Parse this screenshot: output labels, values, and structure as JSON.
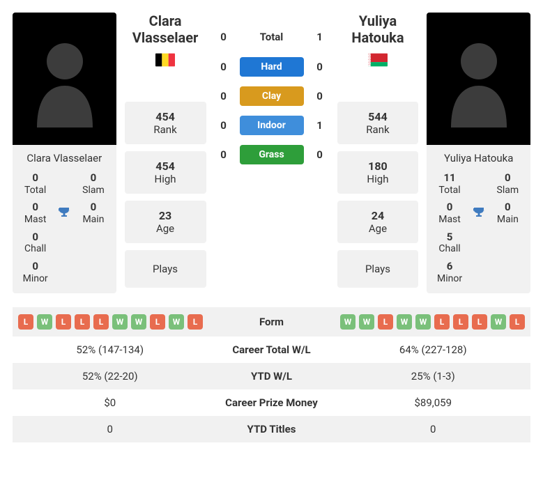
{
  "colors": {
    "chip_win": "#7ac07a",
    "chip_loss": "#e86c4f",
    "trophy": "#3f7bbf",
    "surface_hard": "#1f77d4",
    "surface_clay": "#d89a1e",
    "surface_indoor": "#3f8edb",
    "surface_grass": "#2e9e3a"
  },
  "player1": {
    "full_name": "Clara Vlasselaer",
    "first_name": "Clara",
    "last_name": "Vlasselaer",
    "flag_svg": "bel",
    "titles": {
      "total": "0",
      "slam": "0",
      "mast": "0",
      "main": "0",
      "chall": "0",
      "minor": "0"
    },
    "stats": {
      "rank": "454",
      "high": "454",
      "age": "23",
      "plays": ""
    }
  },
  "player2": {
    "full_name": "Yuliya Hatouka",
    "first_name": "Yuliya",
    "last_name": "Hatouka",
    "flag_svg": "blr",
    "titles": {
      "total": "11",
      "slam": "0",
      "mast": "0",
      "main": "0",
      "chall": "5",
      "minor": "6"
    },
    "stats": {
      "rank": "544",
      "high": "180",
      "age": "24",
      "plays": ""
    }
  },
  "labels": {
    "total": "Total",
    "slam": "Slam",
    "mast": "Mast",
    "main": "Main",
    "chall": "Chall",
    "minor": "Minor",
    "rank": "Rank",
    "high": "High",
    "age": "Age",
    "plays": "Plays",
    "h2h_total": "Total",
    "form": "Form",
    "career_wl": "Career Total W/L",
    "ytd_wl": "YTD W/L",
    "prize": "Career Prize Money",
    "ytd_titles": "YTD Titles"
  },
  "h2h": {
    "total": {
      "p1": "0",
      "p2": "1"
    },
    "surfaces": [
      {
        "name": "Hard",
        "color_key": "surface_hard",
        "p1": "0",
        "p2": "0"
      },
      {
        "name": "Clay",
        "color_key": "surface_clay",
        "p1": "0",
        "p2": "0"
      },
      {
        "name": "Indoor",
        "color_key": "surface_indoor",
        "p1": "0",
        "p2": "1"
      },
      {
        "name": "Grass",
        "color_key": "surface_grass",
        "p1": "0",
        "p2": "0"
      }
    ]
  },
  "form": {
    "p1": [
      "L",
      "W",
      "L",
      "L",
      "L",
      "W",
      "W",
      "L",
      "W",
      "L"
    ],
    "p2": [
      "W",
      "W",
      "L",
      "W",
      "W",
      "L",
      "L",
      "L",
      "W",
      "L"
    ]
  },
  "compare": {
    "career_wl": {
      "p1": "52% (147-134)",
      "p2": "64% (227-128)"
    },
    "ytd_wl": {
      "p1": "52% (22-20)",
      "p2": "25% (1-3)"
    },
    "prize": {
      "p1": "$0",
      "p2": "$89,059"
    },
    "ytd_titles": {
      "p1": "0",
      "p2": "0"
    }
  }
}
